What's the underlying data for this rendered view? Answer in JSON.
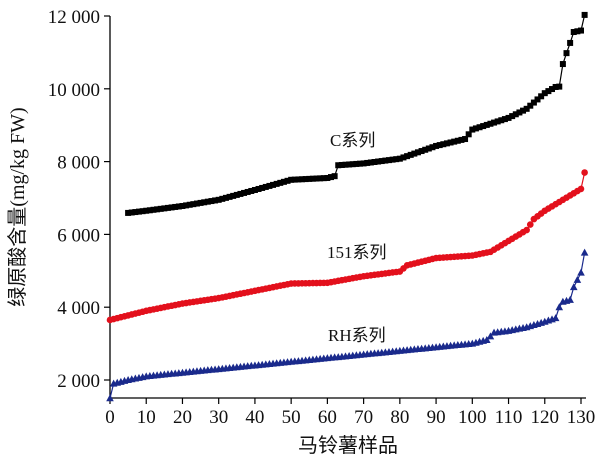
{
  "chart_data": {
    "type": "scatter",
    "title": "",
    "xlabel": "马铃薯样品",
    "ylabel": "绿原酸含量(mg/kg FW)",
    "xlim": [
      0,
      132
    ],
    "ylim": [
      1500,
      12000
    ],
    "xticks": [
      0,
      10,
      20,
      30,
      40,
      50,
      60,
      70,
      80,
      90,
      100,
      110,
      120,
      130
    ],
    "xtick_labels": [
      "0",
      "10",
      "20",
      "30",
      "40",
      "50",
      "60",
      "70",
      "80",
      "90",
      "100",
      "110",
      "120",
      "130"
    ],
    "yticks": [
      2000,
      4000,
      6000,
      8000,
      10000,
      12000
    ],
    "ytick_labels": [
      "2 000",
      "4 000",
      "6 000",
      "8 000",
      "10 000",
      "12 000"
    ],
    "grid": false,
    "legend": "inline labels",
    "series": [
      {
        "name": "C系列",
        "color": "#000000",
        "marker": "square",
        "x_range": [
          5,
          131
        ],
        "knots": [
          [
            5,
            6590
          ],
          [
            10,
            6650
          ],
          [
            20,
            6780
          ],
          [
            30,
            6950
          ],
          [
            40,
            7220
          ],
          [
            50,
            7500
          ],
          [
            60,
            7550
          ],
          [
            62,
            7600
          ],
          [
            63,
            7900
          ],
          [
            70,
            7950
          ],
          [
            80,
            8080
          ],
          [
            90,
            8430
          ],
          [
            98,
            8620
          ],
          [
            100,
            8880
          ],
          [
            110,
            9200
          ],
          [
            115,
            9450
          ],
          [
            120,
            9880
          ],
          [
            123,
            10050
          ],
          [
            124,
            10060
          ],
          [
            125,
            10680
          ],
          [
            126,
            10980
          ],
          [
            127,
            11260
          ],
          [
            128,
            11560
          ],
          [
            130,
            11600
          ],
          [
            131,
            12030
          ]
        ]
      },
      {
        "name": "151系列",
        "color": "#e3101c",
        "marker": "circle",
        "x_range": [
          0,
          131
        ],
        "knots": [
          [
            0,
            3650
          ],
          [
            10,
            3900
          ],
          [
            20,
            4100
          ],
          [
            30,
            4250
          ],
          [
            40,
            4450
          ],
          [
            50,
            4650
          ],
          [
            60,
            4670
          ],
          [
            70,
            4850
          ],
          [
            80,
            4980
          ],
          [
            82,
            5150
          ],
          [
            90,
            5350
          ],
          [
            100,
            5420
          ],
          [
            105,
            5520
          ],
          [
            110,
            5820
          ],
          [
            115,
            6120
          ],
          [
            117,
            6420
          ],
          [
            120,
            6650
          ],
          [
            125,
            6950
          ],
          [
            130,
            7250
          ],
          [
            131,
            7700
          ]
        ]
      },
      {
        "name": "RH系列",
        "color": "#1a2a8c",
        "marker": "triangle",
        "x_range": [
          0,
          131
        ],
        "knots": [
          [
            0,
            1500
          ],
          [
            1,
            1900
          ],
          [
            5,
            2000
          ],
          [
            10,
            2100
          ],
          [
            20,
            2200
          ],
          [
            30,
            2300
          ],
          [
            40,
            2400
          ],
          [
            50,
            2500
          ],
          [
            60,
            2600
          ],
          [
            70,
            2700
          ],
          [
            80,
            2800
          ],
          [
            90,
            2900
          ],
          [
            100,
            3000
          ],
          [
            104,
            3100
          ],
          [
            106,
            3300
          ],
          [
            110,
            3350
          ],
          [
            115,
            3450
          ],
          [
            120,
            3600
          ],
          [
            123,
            3700
          ],
          [
            124,
            4000
          ],
          [
            125,
            4150
          ],
          [
            127,
            4200
          ],
          [
            128,
            4550
          ],
          [
            130,
            4950
          ],
          [
            131,
            5500
          ]
        ]
      }
    ]
  }
}
